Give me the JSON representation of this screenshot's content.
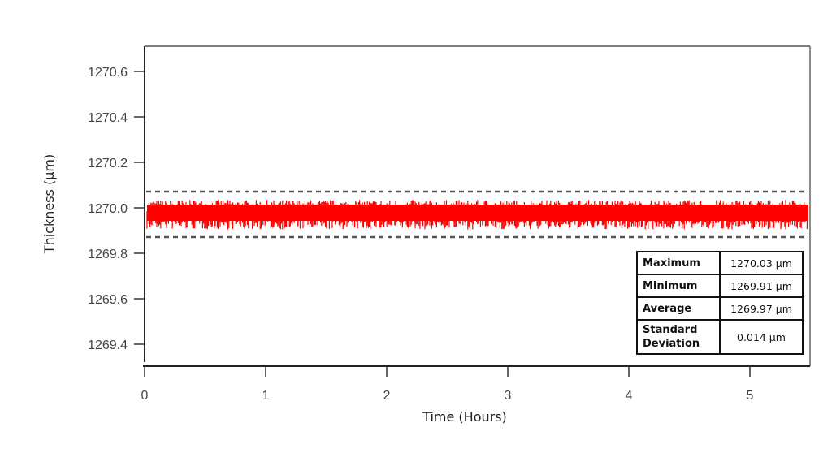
{
  "chart_data": {
    "type": "line",
    "title": "",
    "xlabel": "Time (Hours)",
    "ylabel": "Thickness (µm)",
    "xlim": [
      0,
      5.5
    ],
    "ylim": [
      1269.31,
      1270.71
    ],
    "x_ticks": [
      0,
      1,
      2,
      3,
      4,
      5
    ],
    "x_tick_labels": [
      "0",
      "1",
      "2",
      "3",
      "4",
      "5"
    ],
    "y_ticks": [
      1269.4,
      1269.6,
      1269.8,
      1270.0,
      1270.2,
      1270.4,
      1270.6
    ],
    "y_tick_labels": [
      "1269.4",
      "1269.6",
      "1269.8",
      "1270.0",
      "1270.2",
      "1270.4",
      "1270.6"
    ],
    "grid": false,
    "series": [
      {
        "name": "Thickness",
        "color": "#ff0000",
        "description": "Dense noisy measurement trace from 0 to ~5.5 hours, fluctuating between ~1269.91 and ~1270.03 µm around an average of ~1269.97 µm",
        "x_range": [
          0,
          5.5
        ],
        "min": 1269.91,
        "max": 1270.03,
        "mean": 1269.97
      }
    ],
    "reference_lines": [
      {
        "name": "upper-limit",
        "y": 1270.07,
        "style": "dashed",
        "color": "#555555"
      },
      {
        "name": "lower-limit",
        "y": 1269.87,
        "style": "dashed",
        "color": "#555555"
      }
    ],
    "annotations": {
      "stats_table": [
        {
          "label": "Maximum",
          "value": "1270.03 µm"
        },
        {
          "label": "Minimum",
          "value": "1269.91 µm"
        },
        {
          "label": "Average",
          "value": "1269.97 µm"
        },
        {
          "label": "Standard Deviation",
          "value": "0.014 µm"
        }
      ]
    }
  },
  "labels": {
    "x_axis": "Time (Hours)",
    "y_axis": "Thickness (µm)",
    "x_ticks": [
      "0",
      "1",
      "2",
      "3",
      "4",
      "5"
    ],
    "y_ticks": [
      "1270.6",
      "1270.4",
      "1270.2",
      "1270.0",
      "1269.8",
      "1269.6",
      "1269.4"
    ]
  },
  "stats": [
    {
      "label": "Maximum",
      "value": "1270.03 µm"
    },
    {
      "label": "Minimum",
      "value": "1269.91 µm"
    },
    {
      "label": "Average",
      "value": "1269.97 µm"
    },
    {
      "label_line1": "Standard",
      "label_line2": "Deviation",
      "value": "0.014 µm"
    }
  ],
  "colors": {
    "trace": "#ff0000",
    "limits": "#555555",
    "axis": "#222222"
  }
}
